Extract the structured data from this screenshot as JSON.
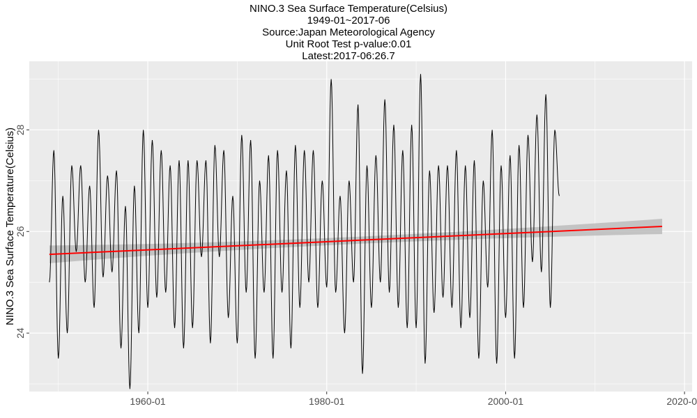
{
  "chart_data": {
    "type": "line",
    "title": "NINO.3 Sea Surface Temperature(Celsius)",
    "subtitle_lines": [
      "1949-01~2017-06",
      "Source:Japan Meteorological Agency",
      "Unit Root Test p-value:0.01",
      "Latest:2017-06:26.7"
    ],
    "xlabel": "",
    "ylabel": "NINO.3 Sea Surface Temperature(Celsius)",
    "x_range": [
      1946.75,
      2020.85
    ],
    "ylim": [
      22.85,
      29.35
    ],
    "x_ticks": [
      {
        "value": 1960,
        "label": "1960-01"
      },
      {
        "value": 1980,
        "label": "1980-01"
      },
      {
        "value": 2000,
        "label": "2000-01"
      },
      {
        "value": 2020,
        "label": "2020-01"
      }
    ],
    "y_ticks": [
      {
        "value": 24,
        "label": "24"
      },
      {
        "value": 26,
        "label": "26"
      },
      {
        "value": 28,
        "label": "28"
      }
    ],
    "grid": true,
    "background": "#ebebeb",
    "series": [
      {
        "color": "#000000",
        "x_start": 1949.0,
        "x_step": 0.5,
        "peaks_troughs": [
          25.0,
          27.6,
          23.5,
          26.7,
          24.0,
          27.3,
          25.6,
          27.3,
          25.0,
          26.9,
          24.5,
          28.0,
          25.1,
          27.1,
          25.2,
          27.2,
          23.7,
          26.5,
          22.9,
          26.9,
          24.0,
          28.0,
          24.5,
          27.8,
          24.7,
          27.6,
          24.8,
          27.3,
          24.1,
          27.4,
          23.7,
          27.4,
          24.1,
          27.4,
          25.5,
          27.4,
          23.8,
          27.7,
          25.5,
          27.6,
          24.3,
          26.7,
          23.8,
          27.9,
          24.8,
          27.8,
          23.5,
          27.0,
          24.8,
          27.5,
          23.5,
          27.6,
          24.8,
          27.2,
          23.7,
          27.7,
          24.5,
          27.6,
          25.0,
          27.6,
          24.5,
          27.0,
          24.9,
          29.0,
          24.8,
          26.7,
          24.0,
          27.0,
          25.0,
          28.5,
          23.2,
          27.3,
          24.5,
          27.5,
          25.0,
          28.6,
          24.8,
          28.1,
          24.5,
          27.6,
          24.1,
          28.1,
          24.1,
          29.1,
          23.4,
          27.2,
          24.4,
          27.3,
          24.7,
          27.3,
          24.5,
          27.6,
          24.1,
          27.3,
          24.3,
          27.4,
          23.5,
          27.0,
          24.9,
          28.0,
          23.4,
          27.3,
          24.3,
          27.5,
          23.5,
          27.7,
          24.5,
          27.9,
          25.4,
          28.3,
          25.2,
          28.7,
          24.5,
          28.0,
          26.7
        ]
      },
      {
        "name": "trend",
        "color": "#ff0000",
        "x": [
          1949.0,
          2017.5
        ],
        "y": [
          25.55,
          26.1
        ],
        "ci_lower": [
          25.37,
          25.95
        ],
        "ci_upper": [
          25.72,
          26.25
        ],
        "ci_mid": [
          25.72,
          25.88
        ],
        "ci_color": "#bcbcbc"
      }
    ]
  }
}
